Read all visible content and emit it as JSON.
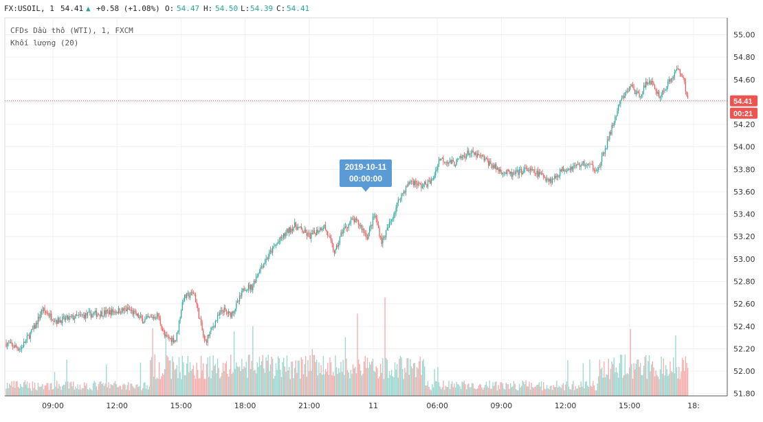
{
  "header": {
    "symbol": "FX:USOIL, 1",
    "last": "54.41",
    "change": "+0.58 (+1.08%)",
    "o_label": "O:",
    "o_value": "54.47",
    "h_label": "H:",
    "h_value": "54.50",
    "l_label": "L:",
    "l_value": "54.39",
    "c_label": "C:",
    "c_value": "54.41"
  },
  "legend": {
    "series": "CFDs Dầu thô (WTI), 1, FXCM",
    "volume": "Khối lượng (20)"
  },
  "price_badge": {
    "price": "54.41",
    "countdown": "00:21"
  },
  "tooltip": {
    "date": "2019-10-11",
    "time": "00:00:00"
  },
  "colors": {
    "up": "#26a69a",
    "down": "#ef5350",
    "tooltip": "#5b9bd5",
    "badge": "#ef5350"
  },
  "chart_data": {
    "type": "candlestick",
    "y_ticks": [
      "55.00",
      "54.80",
      "54.60",
      "54.40",
      "54.20",
      "54.00",
      "53.80",
      "53.60",
      "53.40",
      "53.20",
      "53.00",
      "52.80",
      "52.60",
      "52.40",
      "52.20",
      "52.00",
      "51.80"
    ],
    "ylim": [
      51.78,
      55.15
    ],
    "x_ticks": [
      "09:00",
      "12:00",
      "15:00",
      "18:00",
      "21:00",
      "11",
      "06:00",
      "09:00",
      "12:00",
      "15:00",
      "18:"
    ],
    "last_price": 54.41,
    "price_path": [
      [
        0,
        52.25
      ],
      [
        0.02,
        52.2
      ],
      [
        0.04,
        52.4
      ],
      [
        0.05,
        52.55
      ],
      [
        0.07,
        52.45
      ],
      [
        0.11,
        52.5
      ],
      [
        0.17,
        52.55
      ],
      [
        0.19,
        52.45
      ],
      [
        0.21,
        52.5
      ],
      [
        0.22,
        52.3
      ],
      [
        0.235,
        52.28
      ],
      [
        0.245,
        52.65
      ],
      [
        0.26,
        52.7
      ],
      [
        0.275,
        52.25
      ],
      [
        0.29,
        52.45
      ],
      [
        0.3,
        52.55
      ],
      [
        0.31,
        52.5
      ],
      [
        0.32,
        52.6
      ],
      [
        0.33,
        52.75
      ],
      [
        0.34,
        52.75
      ],
      [
        0.35,
        52.9
      ],
      [
        0.37,
        53.1
      ],
      [
        0.39,
        53.25
      ],
      [
        0.4,
        53.3
      ],
      [
        0.42,
        53.2
      ],
      [
        0.44,
        53.3
      ],
      [
        0.455,
        53.05
      ],
      [
        0.465,
        53.25
      ],
      [
        0.48,
        53.35
      ],
      [
        0.49,
        53.3
      ],
      [
        0.5,
        53.2
      ],
      [
        0.51,
        53.4
      ],
      [
        0.52,
        53.15
      ],
      [
        0.53,
        53.3
      ],
      [
        0.545,
        53.55
      ],
      [
        0.56,
        53.7
      ],
      [
        0.575,
        53.65
      ],
      [
        0.59,
        53.7
      ],
      [
        0.6,
        53.9
      ],
      [
        0.62,
        53.85
      ],
      [
        0.64,
        53.95
      ],
      [
        0.66,
        53.9
      ],
      [
        0.68,
        53.8
      ],
      [
        0.7,
        53.75
      ],
      [
        0.72,
        53.8
      ],
      [
        0.74,
        53.75
      ],
      [
        0.755,
        53.7
      ],
      [
        0.77,
        53.8
      ],
      [
        0.8,
        53.85
      ],
      [
        0.82,
        53.8
      ],
      [
        0.835,
        54.1
      ],
      [
        0.85,
        54.4
      ],
      [
        0.865,
        54.55
      ],
      [
        0.875,
        54.45
      ],
      [
        0.89,
        54.6
      ],
      [
        0.905,
        54.45
      ],
      [
        0.915,
        54.55
      ],
      [
        0.93,
        54.7
      ],
      [
        0.935,
        54.65
      ],
      [
        0.945,
        54.41
      ]
    ],
    "volume_max_ratio": 0.42
  }
}
